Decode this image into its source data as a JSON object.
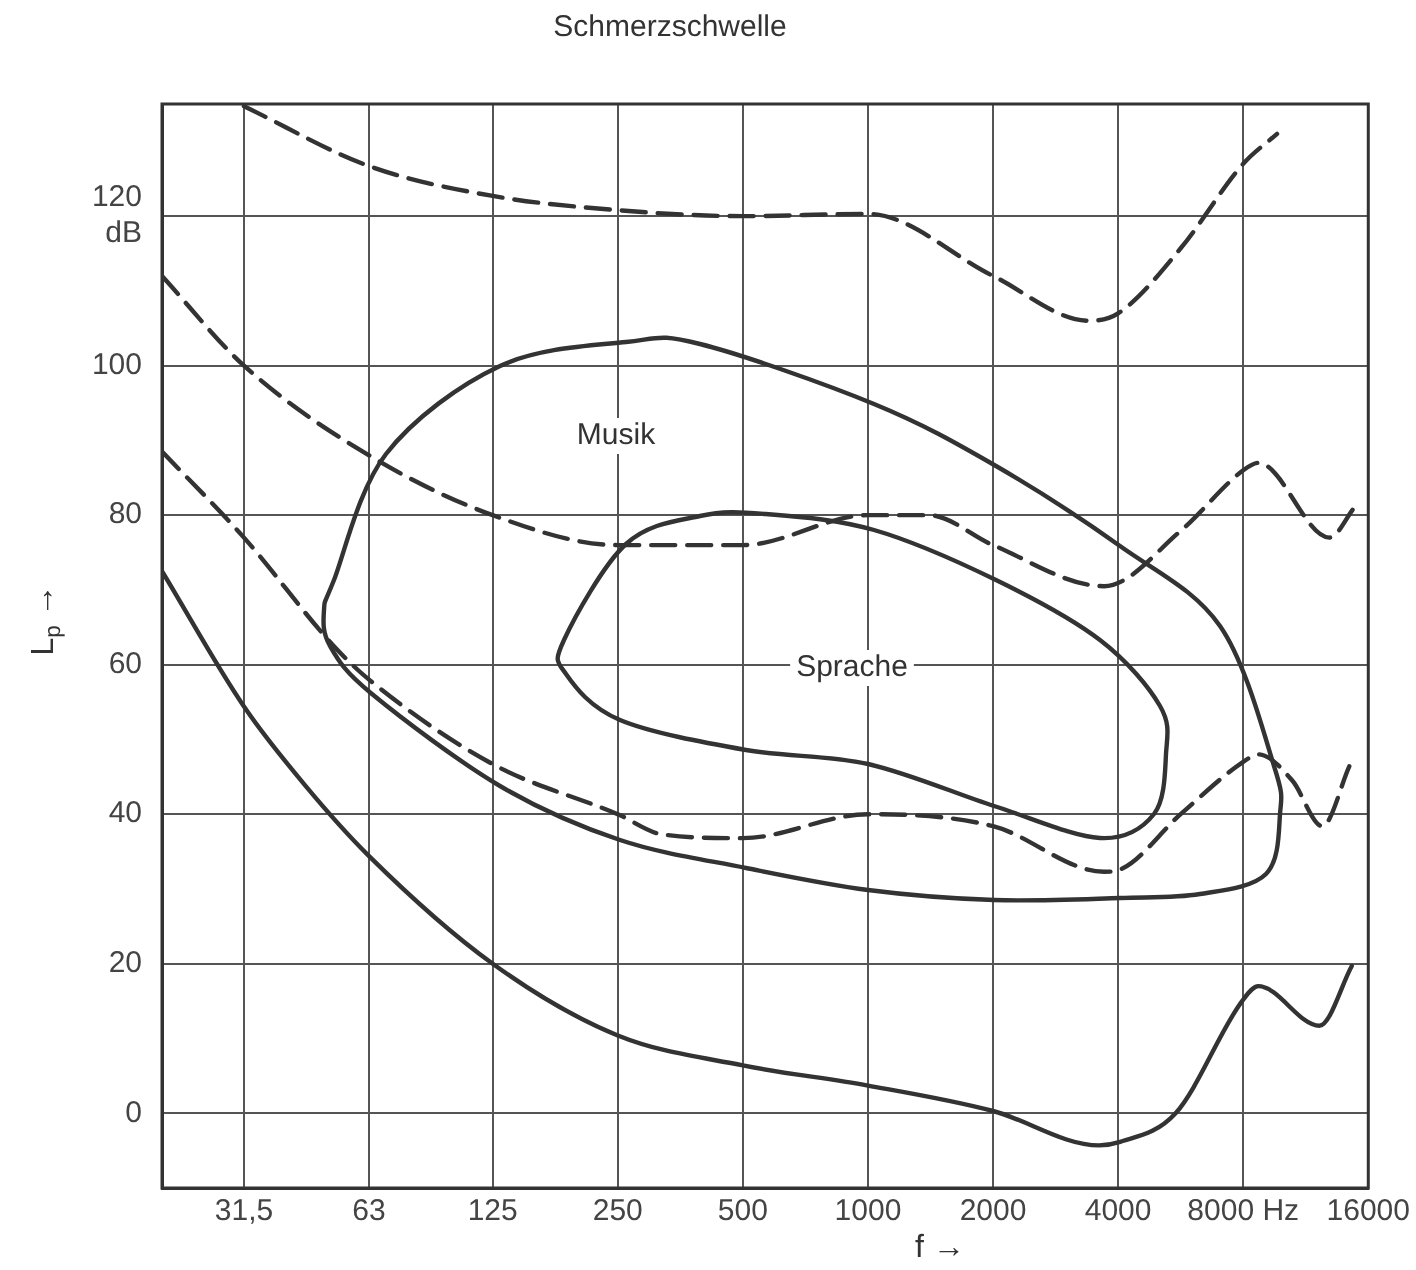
{
  "chart_data": {
    "type": "line",
    "title": "Schmerzschwelle",
    "xlabel": "f →",
    "ylabel": "L$_{p}$ →",
    "log": "x",
    "grid": true,
    "legend": false,
    "marker": "none",
    "xlim": [
      20,
      16000
    ],
    "xticks": [
      {
        "value": 31.5,
        "label": "31,5"
      },
      63,
      125,
      250,
      500,
      1000,
      2000,
      4000,
      {
        "value": 8000,
        "label": "8000 Hz"
      },
      16000
    ],
    "ylim": [
      -10,
      135
    ],
    "yticks": [
      0,
      20,
      40,
      60,
      80,
      100,
      {
        "value": 120,
        "label": "120 dB"
      }
    ],
    "annotations": [
      "Musik",
      "Sprache"
    ],
    "series": [
      {
        "color": "#333333",
        "line_style": "solid",
        "x": [
          20,
          31.5,
          44,
          63,
          125,
          250,
          500,
          1000,
          2000,
          3600,
          4000,
          5500,
          8000,
          8700,
          12200,
          14600
        ],
        "values": [
          72.5,
          54.4,
          44,
          34.4,
          20,
          10.4,
          6.4,
          3.7,
          0.3,
          -4.3,
          -3.9,
          0,
          15.2,
          17,
          11.7,
          19.7
        ]
      },
      {
        "color": "#333333",
        "line_style": "dashed",
        "x": [
          31.5,
          63,
          125,
          250,
          500,
          1000,
          2000,
          3400,
          4000,
          5657,
          8000,
          9650
        ],
        "values": [
          134.7,
          126.7,
          122.7,
          120.8,
          120,
          120.3,
          112,
          106,
          107,
          115.7,
          127,
          131
        ]
      },
      {
        "color": "#333333",
        "line_style": "dashed",
        "x": [
          20,
          31.5,
          63,
          125,
          250,
          500,
          1000,
          1400,
          2000,
          3700,
          5657,
          8000,
          8700,
          12900,
          14800
        ],
        "values": [
          112,
          100,
          88,
          80,
          76,
          76,
          80,
          80,
          76,
          70.5,
          77.9,
          86,
          87,
          77,
          81
        ]
      },
      {
        "color": "#333333",
        "line_style": "dashed",
        "x": [
          20,
          31.5,
          52,
          63,
          125,
          250,
          320,
          500,
          1000,
          2000,
          3700,
          4000,
          5657,
          8000,
          8700,
          10500,
          12400,
          14400
        ],
        "values": [
          88.5,
          77,
          62.4,
          58,
          46.7,
          40,
          37.3,
          36.8,
          40,
          38.4,
          32.3,
          32.5,
          40,
          47,
          48,
          44.5,
          38.4,
          46.4
        ]
      }
    ]
  }
}
